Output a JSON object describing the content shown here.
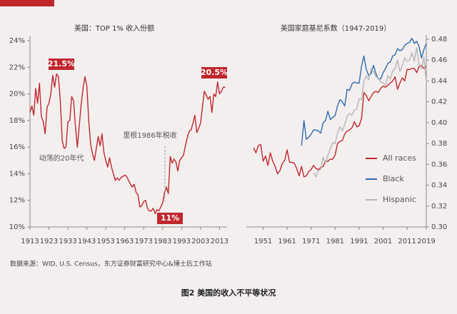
{
  "chart_data": [
    {
      "type": "line",
      "title": "美国：TOP 1% 收入份额",
      "x": [
        1913,
        1914,
        1915,
        1916,
        1917,
        1918,
        1919,
        1920,
        1921,
        1922,
        1923,
        1924,
        1925,
        1926,
        1927,
        1928,
        1929,
        1930,
        1931,
        1932,
        1933,
        1934,
        1935,
        1936,
        1937,
        1938,
        1939,
        1940,
        1941,
        1942,
        1943,
        1944,
        1945,
        1946,
        1947,
        1948,
        1949,
        1950,
        1951,
        1952,
        1953,
        1954,
        1955,
        1956,
        1957,
        1958,
        1959,
        1960,
        1961,
        1962,
        1963,
        1964,
        1965,
        1966,
        1967,
        1968,
        1969,
        1970,
        1971,
        1972,
        1973,
        1974,
        1975,
        1976,
        1977,
        1978,
        1979,
        1980,
        1981,
        1982,
        1983,
        1984,
        1985,
        1986,
        1987,
        1988,
        1989,
        1990,
        1991,
        1992,
        1993,
        1994,
        1995,
        1996,
        1997,
        1998,
        1999,
        2000,
        2001,
        2002,
        2003,
        2004,
        2005,
        2006,
        2007,
        2008,
        2009,
        2010,
        2011,
        2012,
        2013,
        2014,
        2015,
        2016
      ],
      "series": [
        {
          "color": "#c0272d",
          "values": [
            18.6,
            19.1,
            18.4,
            20.4,
            19.3,
            20.8,
            18.3,
            17.9,
            17.0,
            19.0,
            19.3,
            20.0,
            21.4,
            20.5,
            21.5,
            21.3,
            19.5,
            16.5,
            15.9,
            16.0,
            17.9,
            18.0,
            19.8,
            19.5,
            17.5,
            16.0,
            17.6,
            19.2,
            20.4,
            21.3,
            20.6,
            18.0,
            16.2,
            15.5,
            15.0,
            15.9,
            16.8,
            16.1,
            17.0,
            15.6,
            15.0,
            14.5,
            15.2,
            14.5,
            14.0,
            13.5,
            13.7,
            13.5,
            13.7,
            13.8,
            13.9,
            13.8,
            13.5,
            13.2,
            13.0,
            13.2,
            12.6,
            12.4,
            11.5,
            11.6,
            11.9,
            12.0,
            11.4,
            11.2,
            11.2,
            11.4,
            11.0,
            11.3,
            11.2,
            11.5,
            11.8,
            12.6,
            13.0,
            12.5,
            15.3,
            14.8,
            15.1,
            14.9,
            14.2,
            15.0,
            15.2,
            15.4,
            16.1,
            16.7,
            17.2,
            17.3,
            17.8,
            18.4,
            17.1,
            17.4,
            17.8,
            19.0,
            20.2,
            19.9,
            19.6,
            19.8,
            18.6,
            20.0,
            19.8,
            20.9,
            20.0,
            20.2,
            20.5,
            20.5
          ]
        }
      ],
      "xlim": [
        1913,
        2017
      ],
      "xticks": [
        1913,
        1923,
        1933,
        1943,
        1953,
        1963,
        1973,
        1983,
        1993,
        2003,
        2013
      ],
      "ylim": [
        10,
        24
      ],
      "yticks": [
        {
          "value": 10,
          "label": "10%"
        },
        {
          "value": 12,
          "label": "12%"
        },
        {
          "value": 14,
          "label": "14%"
        },
        {
          "value": 16,
          "label": "16%"
        },
        {
          "value": 18,
          "label": "18%"
        },
        {
          "value": 20,
          "label": "20%"
        },
        {
          "value": 22,
          "label": "22%"
        },
        {
          "value": 24,
          "label": "24%"
        }
      ],
      "annotations": [
        "21.5%",
        "11%",
        "20.5%",
        "动荡的20年代",
        "里根1986年税收"
      ]
    },
    {
      "type": "line",
      "title": "美国家庭基尼系数（1947-2019）",
      "x": [
        1947,
        1948,
        1949,
        1950,
        1951,
        1952,
        1953,
        1954,
        1955,
        1956,
        1957,
        1958,
        1959,
        1960,
        1961,
        1962,
        1963,
        1964,
        1965,
        1966,
        1967,
        1968,
        1969,
        1970,
        1971,
        1972,
        1973,
        1974,
        1975,
        1976,
        1977,
        1978,
        1979,
        1980,
        1981,
        1982,
        1983,
        1984,
        1985,
        1986,
        1987,
        1988,
        1989,
        1990,
        1991,
        1992,
        1993,
        1994,
        1995,
        1996,
        1997,
        1998,
        1999,
        2000,
        2001,
        2002,
        2003,
        2004,
        2005,
        2006,
        2007,
        2008,
        2009,
        2010,
        2011,
        2012,
        2013,
        2014,
        2015,
        2016,
        2017,
        2018,
        2019
      ],
      "series": [
        {
          "name": "All races",
          "color": "#c0272d",
          "values": [
            0.376,
            0.371,
            0.378,
            0.379,
            0.363,
            0.368,
            0.359,
            0.371,
            0.363,
            0.358,
            0.351,
            0.354,
            0.361,
            0.364,
            0.374,
            0.362,
            0.362,
            0.361,
            0.356,
            0.349,
            0.358,
            0.348,
            0.349,
            0.353,
            0.355,
            0.359,
            0.356,
            0.355,
            0.357,
            0.358,
            0.363,
            0.363,
            0.365,
            0.365,
            0.369,
            0.38,
            0.382,
            0.383,
            0.389,
            0.392,
            0.393,
            0.395,
            0.401,
            0.396,
            0.397,
            0.404,
            0.429,
            0.426,
            0.421,
            0.425,
            0.429,
            0.43,
            0.429,
            0.433,
            0.435,
            0.434,
            0.436,
            0.438,
            0.44,
            0.444,
            0.432,
            0.438,
            0.443,
            0.44,
            0.451,
            0.451,
            0.452,
            0.452,
            0.448,
            0.454,
            0.455,
            0.452,
            0.454
          ]
        },
        {
          "name": "Black",
          "color": "#2b6cb0",
          "values": [
            null,
            null,
            null,
            null,
            null,
            null,
            null,
            null,
            null,
            null,
            null,
            null,
            null,
            null,
            null,
            null,
            null,
            null,
            null,
            null,
            0.378,
            0.402,
            0.384,
            0.386,
            0.389,
            0.393,
            0.393,
            0.392,
            0.39,
            0.4,
            0.402,
            0.411,
            0.403,
            0.405,
            0.407,
            0.416,
            0.422,
            0.42,
            0.416,
            0.432,
            0.431,
            0.437,
            0.439,
            0.438,
            0.438,
            0.454,
            0.464,
            0.451,
            0.445,
            0.447,
            0.455,
            0.447,
            0.442,
            0.442,
            0.448,
            0.452,
            0.457,
            0.458,
            0.464,
            0.465,
            0.471,
            0.469,
            0.47,
            0.474,
            0.476,
            0.477,
            0.481,
            0.476,
            0.478,
            0.473,
            0.462,
            0.47,
            0.476
          ]
        },
        {
          "name": "Hispanic",
          "color": "#b5b5b5",
          "values": [
            null,
            null,
            null,
            null,
            null,
            null,
            null,
            null,
            null,
            null,
            null,
            null,
            null,
            null,
            null,
            null,
            null,
            null,
            null,
            null,
            null,
            null,
            null,
            null,
            null,
            0.352,
            0.348,
            0.354,
            0.355,
            0.367,
            0.361,
            0.369,
            0.375,
            0.381,
            0.38,
            0.39,
            0.396,
            0.392,
            0.398,
            0.406,
            0.409,
            0.407,
            0.412,
            0.413,
            0.423,
            0.422,
            0.44,
            0.445,
            0.441,
            0.452,
            0.449,
            0.444,
            0.443,
            0.439,
            0.438,
            0.436,
            0.445,
            0.442,
            0.45,
            0.452,
            0.46,
            0.449,
            0.455,
            0.462,
            0.459,
            0.46,
            0.467,
            0.459,
            0.472,
            0.455,
            0.452,
            0.463,
            0.439
          ]
        }
      ],
      "xlim": [
        1944,
        2019
      ],
      "xticks": [
        1951,
        1961,
        1971,
        1981,
        1991,
        2001,
        2011,
        2019
      ],
      "ylim": [
        0.3,
        0.48
      ],
      "yticks": [
        {
          "value": 0.3,
          "label": "0.30"
        },
        {
          "value": 0.32,
          "label": "0.32"
        },
        {
          "value": 0.34,
          "label": "0.34"
        },
        {
          "value": 0.36,
          "label": "0.36"
        },
        {
          "value": 0.38,
          "label": "0.38"
        },
        {
          "value": 0.4,
          "label": "0.40"
        },
        {
          "value": 0.42,
          "label": "0.42"
        },
        {
          "value": 0.44,
          "label": "0.44"
        },
        {
          "value": 0.46,
          "label": "0.46"
        },
        {
          "value": 0.48,
          "label": "0.48"
        }
      ],
      "y_axis_side": "right",
      "legend": "right"
    }
  ],
  "source": "数据来源：WID, U.S. Census，东方证券财富研究中心&博士后工作站",
  "caption": "图2 美国的收入不平等状况"
}
